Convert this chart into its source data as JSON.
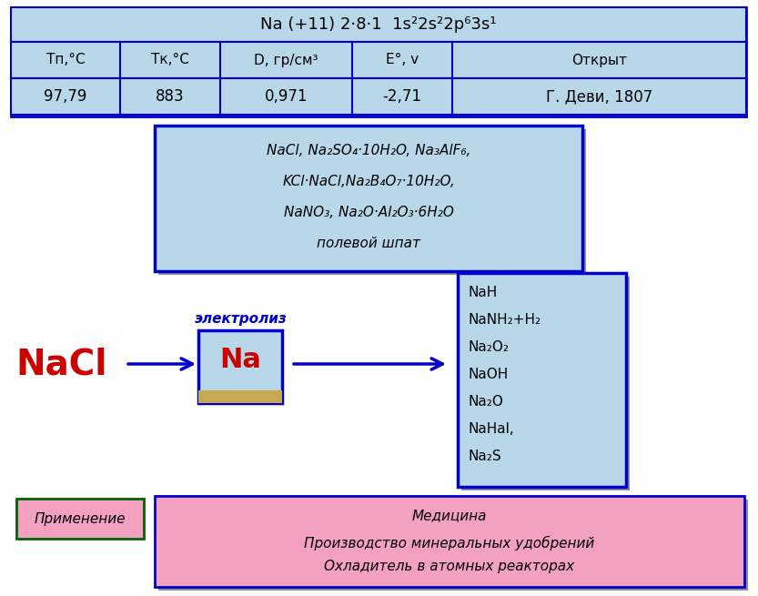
{
  "title_row": "Na (+11) 2·8·1  1s²2s²2p⁶3s¹",
  "table_headers": [
    "Tп,°C",
    "Tк,°C",
    "D, гр/см³",
    "E°, v",
    "Открыт"
  ],
  "table_values": [
    "97,79",
    "883",
    "0,971",
    "-2,71",
    "Г. Деви, 1807"
  ],
  "minerals_line1": "NaCl, Na₂SO₄·10H₂O, Na₃AlF₆,",
  "minerals_line2": "KCl·NaCl,Na₂B₄O₇·10H₂O,",
  "minerals_line3": "NaNO₃, Na₂O·Al₂O₃·6H₂O",
  "minerals_line4": "полевой шпат",
  "nacl_label": "NaCl",
  "na_label": "Na",
  "electrolysis_label": "электролиз",
  "products_lines": [
    "NaH",
    "NaNH₂+H₂",
    "Na₂O₂",
    "NaOH",
    "Na₂O",
    "NaHal,",
    "Na₂S"
  ],
  "primenenie_label": "Применение",
  "application_lines": [
    "Медицина",
    "Производство минеральных удобрений",
    "Охладитель в атомных реакторах"
  ],
  "light_blue": "#b8d8ea",
  "blue_border": "#0000cd",
  "table_bg": "#b0d4e8",
  "white": "#ffffff",
  "pink": "#f4a0c0",
  "red": "#cc0000",
  "dark_blue_text": "#0000cc",
  "shadow": "#909090",
  "gold": "#c8a850",
  "black": "#000000",
  "green_border": "#006400"
}
